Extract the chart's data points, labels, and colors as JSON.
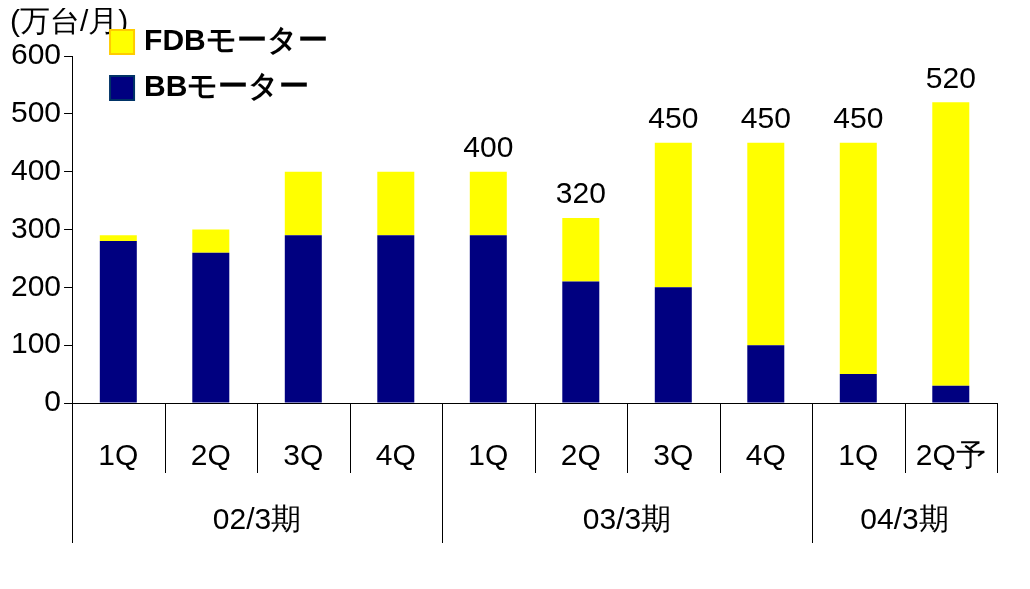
{
  "chart_data": {
    "type": "bar",
    "stacked": true,
    "ylabel": "(万台/月)",
    "categories": [
      "1Q",
      "2Q",
      "3Q",
      "4Q",
      "1Q",
      "2Q",
      "3Q",
      "4Q",
      "1Q",
      "2Q予"
    ],
    "series": [
      {
        "name": "BBモーター",
        "color": "#000080",
        "values": [
          280,
          260,
          290,
          290,
          290,
          210,
          200,
          100,
          50,
          30
        ]
      },
      {
        "name": "FDBモーター",
        "color": "#ffff00",
        "values": [
          10,
          40,
          110,
          110,
          110,
          110,
          250,
          350,
          400,
          490
        ]
      }
    ],
    "totals": [
      null,
      null,
      null,
      null,
      "400",
      "320",
      "450",
      "450",
      "450",
      "520"
    ],
    "annotations": [
      "02/3期",
      "03/3期",
      "04/3期"
    ],
    "ylim": [
      0,
      600
    ],
    "yticks": [
      0,
      100,
      200,
      300,
      400,
      500,
      600
    ],
    "grid": false,
    "legend": "top left"
  }
}
